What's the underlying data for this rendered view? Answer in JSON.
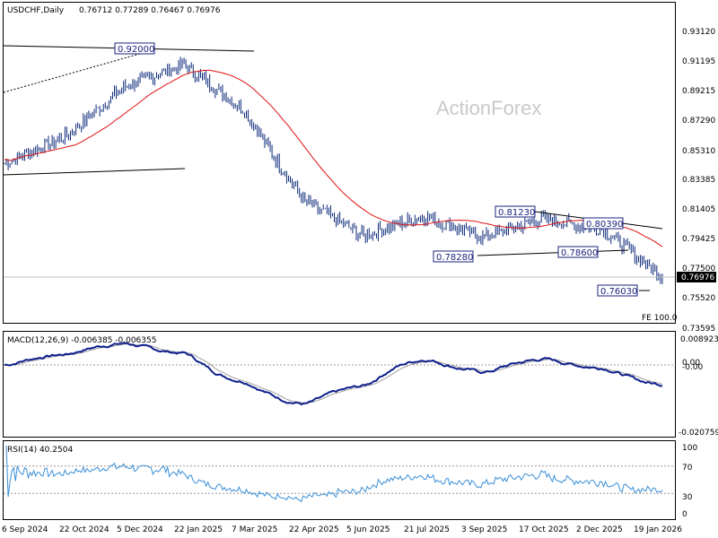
{
  "header": {
    "symbol": "USDCHF,Daily",
    "ohlc": "0.76712 0.77289 0.76467 0.76976"
  },
  "watermark": "ActionForex",
  "price_panel": {
    "y_ticks": [
      "0.93120",
      "0.91195",
      "0.89215",
      "0.87290",
      "0.85310",
      "0.83385",
      "0.81405",
      "0.79425",
      "0.77500",
      "0.75520",
      "0.73595"
    ],
    "y_tick_values": [
      0.9312,
      0.91195,
      0.89215,
      0.8729,
      0.8531,
      0.83385,
      0.81405,
      0.79425,
      0.775,
      0.7552,
      0.73595
    ],
    "current_price": "0.76976",
    "fe_label": "FE 100.0",
    "annotations": [
      "0.92000",
      "0.81230",
      "0.80390",
      "0.78280",
      "0.78600",
      "0.76030"
    ]
  },
  "macd_panel": {
    "label": "MACD(12,26,9) -0.006385 -0.006355",
    "ticks": [
      "0.008923",
      "0.00",
      "-0.00",
      "-0.020759"
    ]
  },
  "rsi_panel": {
    "label": "RSI(14) 40.2504",
    "ticks": [
      "100",
      "70",
      "30",
      "0"
    ]
  },
  "x_axis": {
    "labels": [
      "6 Sep 2024",
      "22 Oct 2024",
      "5 Dec 2024",
      "22 Jan 2025",
      "7 Mar 2025",
      "22 Apr 2025",
      "5 Jun 2025",
      "21 Jul 2025",
      "3 Sep 2025",
      "17 Oct 2025",
      "2 Dec 2025",
      "19 Jan 2026"
    ]
  },
  "colors": {
    "bars": "#0d2a7a",
    "ma": "#e01010",
    "macd": "#0d1f8c",
    "signal": "#a0a0a0",
    "rsi": "#3a8fd8",
    "trendline": "#000000"
  },
  "chart_data": {
    "type": "line",
    "title": "USDCHF,Daily",
    "x": [
      "6 Sep 2024",
      "22 Oct 2024",
      "5 Dec 2024",
      "22 Jan 2025",
      "7 Mar 2025",
      "22 Apr 2025",
      "5 Jun 2025",
      "21 Jul 2025",
      "3 Sep 2025",
      "17 Oct 2025",
      "2 Dec 2025",
      "19 Jan 2026"
    ],
    "series": [
      {
        "name": "",
        "values": [
          0.845,
          0.862,
          0.895,
          0.91,
          0.88,
          0.82,
          0.797,
          0.81,
          0.796,
          0.808,
          0.801,
          0.77
        ]
      }
    ],
    "ylim": [
      0.73595,
      0.9312
    ],
    "indicators": {
      "macd": {
        "params": "12,26,9",
        "value": -0.006385,
        "signal": -0.006355
      },
      "rsi": {
        "period": 14,
        "value": 40.2504,
        "levels": [
          70,
          30
        ]
      }
    },
    "annotated_levels": [
      0.92,
      0.8123,
      0.8039,
      0.7828,
      0.786,
      0.7603
    ],
    "last_price": 0.76976
  }
}
